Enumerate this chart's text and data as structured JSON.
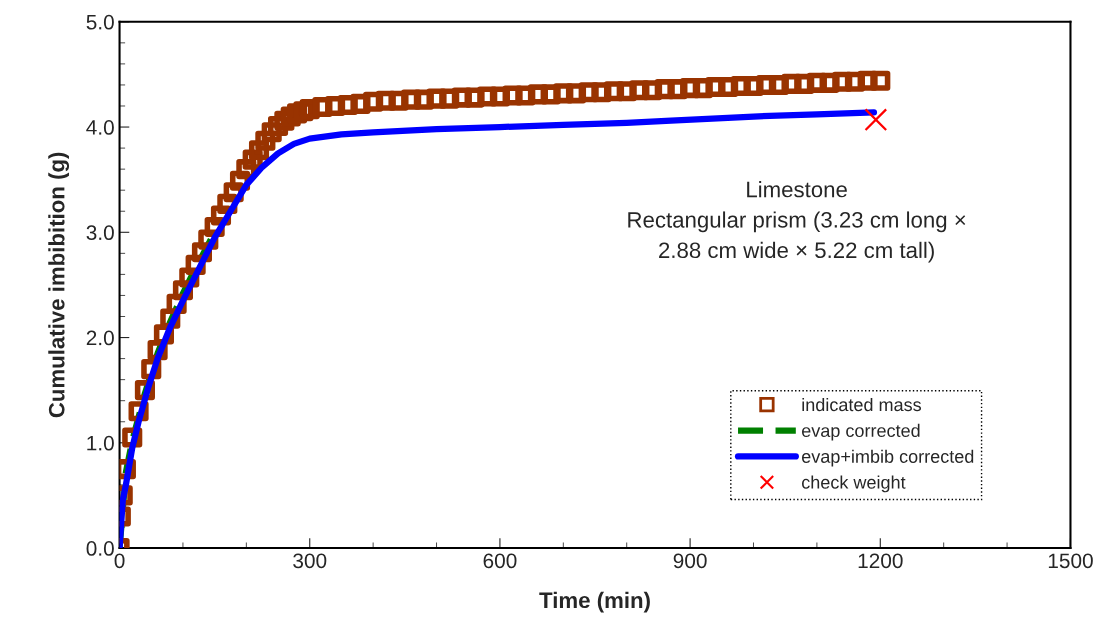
{
  "chart_data": {
    "type": "line",
    "xlabel": "Time (min)",
    "ylabel": "Cumulative imbibition (g)",
    "xlim": [
      0,
      1500
    ],
    "xticks": [
      0,
      300,
      600,
      900,
      1200,
      1500
    ],
    "ylim": [
      0,
      5
    ],
    "yticks": [
      {
        "value": 0,
        "label": "0.0"
      },
      {
        "value": 1,
        "label": "1.0"
      },
      {
        "value": 2,
        "label": "2.0"
      },
      {
        "value": 3,
        "label": "3.0"
      },
      {
        "value": 4,
        "label": "4.0"
      },
      {
        "value": 5,
        "label": "5.0"
      }
    ],
    "grid": false,
    "legend": "bottom right",
    "annotations": [
      "Limestone\nRectangular prism (3.23 cm long ×\n2.88 cm wide × 5.22 cm tall)"
    ],
    "series": [
      {
        "name": "indicated mass",
        "type": "scatter",
        "marker": "square",
        "color": "#993300",
        "x": [
          0,
          2,
          5,
          10,
          20,
          30,
          40,
          50,
          60,
          70,
          80,
          90,
          100,
          110,
          120,
          130,
          140,
          150,
          160,
          170,
          180,
          190,
          200,
          210,
          220,
          230,
          240,
          250,
          260,
          270,
          280,
          290,
          300,
          320,
          340,
          360,
          380,
          400,
          420,
          440,
          460,
          480,
          500,
          520,
          540,
          560,
          580,
          600,
          620,
          640,
          660,
          680,
          700,
          720,
          740,
          760,
          780,
          800,
          820,
          840,
          860,
          880,
          900,
          920,
          940,
          960,
          980,
          1000,
          1020,
          1040,
          1060,
          1080,
          1100,
          1120,
          1140,
          1160,
          1180,
          1200
        ],
        "values": [
          0,
          0.3,
          0.5,
          0.75,
          1.05,
          1.3,
          1.5,
          1.7,
          1.88,
          2.03,
          2.18,
          2.32,
          2.45,
          2.57,
          2.69,
          2.81,
          2.93,
          3.05,
          3.16,
          3.27,
          3.38,
          3.49,
          3.6,
          3.69,
          3.78,
          3.87,
          3.95,
          4.01,
          4.06,
          4.1,
          4.13,
          4.15,
          4.17,
          4.19,
          4.2,
          4.21,
          4.22,
          4.24,
          4.25,
          4.25,
          4.26,
          4.26,
          4.27,
          4.27,
          4.28,
          4.28,
          4.29,
          4.29,
          4.3,
          4.3,
          4.31,
          4.31,
          4.32,
          4.32,
          4.33,
          4.33,
          4.34,
          4.34,
          4.35,
          4.35,
          4.36,
          4.36,
          4.37,
          4.37,
          4.38,
          4.38,
          4.39,
          4.39,
          4.4,
          4.4,
          4.41,
          4.41,
          4.42,
          4.42,
          4.43,
          4.43,
          4.44,
          4.44
        ]
      },
      {
        "name": "evap corrected",
        "type": "line",
        "line_style": "dashed",
        "color": "#008000",
        "x": [
          0,
          10,
          20,
          40,
          60,
          80,
          100,
          120,
          150
        ],
        "values": [
          0,
          0.72,
          1.02,
          1.47,
          1.85,
          2.15,
          2.42,
          2.66,
          3.0
        ]
      },
      {
        "name": "evap+imbib corrected",
        "type": "line",
        "line_style": "solid",
        "color": "#0000ff",
        "x": [
          0,
          5,
          10,
          20,
          30,
          45,
          60,
          80,
          100,
          125,
          150,
          175,
          200,
          225,
          250,
          275,
          300,
          350,
          400,
          500,
          600,
          700,
          800,
          870,
          1000,
          1100,
          1190
        ],
        "values": [
          0,
          0.45,
          0.6,
          0.95,
          1.2,
          1.52,
          1.8,
          2.1,
          2.35,
          2.65,
          2.95,
          3.2,
          3.45,
          3.62,
          3.75,
          3.84,
          3.89,
          3.93,
          3.95,
          3.98,
          4.0,
          4.02,
          4.04,
          4.06,
          4.1,
          4.12,
          4.14
        ]
      },
      {
        "name": "check weight",
        "type": "scatter",
        "marker": "cross",
        "color": "#ff0000",
        "x": [
          1193
        ],
        "values": [
          4.07
        ]
      }
    ]
  }
}
